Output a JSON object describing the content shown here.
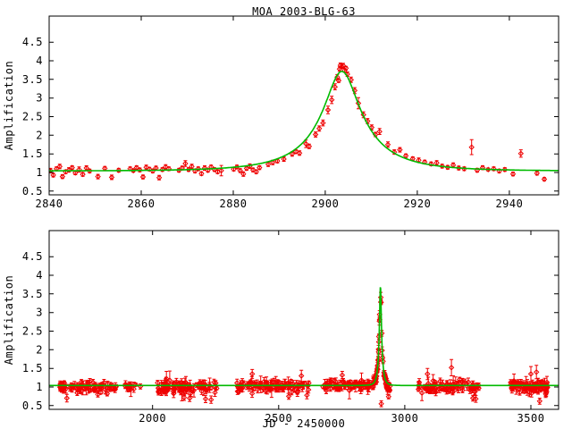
{
  "figure": {
    "title": "MOA 2003-BLG-63",
    "background": "#ffffff",
    "colors": {
      "points": "#ee0000",
      "curve": "#00bb00",
      "axis": "#000000"
    }
  },
  "chart_data": [
    {
      "id": "top-panel",
      "type": "scatter",
      "title": "MOA 2003-BLG-63",
      "xlabel": "",
      "ylabel": "Amplification",
      "xlim": [
        2840,
        2950.7
      ],
      "ylim": [
        0.4,
        5.2
      ],
      "xticks": [
        2840,
        2860,
        2880,
        2900,
        2920,
        2940
      ],
      "yticks": [
        0.5,
        1,
        1.5,
        2,
        2.5,
        3,
        3.5,
        4,
        4.5
      ],
      "grid": false,
      "legend": null,
      "model": {
        "type": "paczynski-microlensing",
        "t0": 2903.6,
        "tE": 14.3,
        "u0": 0.28,
        "baseline_offset": 0.04,
        "peak_amplification": 3.75
      },
      "points": [
        [
          2840.3,
          1.05,
          0.06
        ],
        [
          2840.9,
          0.93,
          0.05
        ],
        [
          2841.6,
          1.1,
          0.05
        ],
        [
          2842.3,
          1.16,
          0.06
        ],
        [
          2842.9,
          0.89,
          0.05
        ],
        [
          2843.6,
          1.02,
          0.05
        ],
        [
          2844.3,
          1.07,
          0.06
        ],
        [
          2845.0,
          1.13,
          0.05
        ],
        [
          2845.7,
          0.99,
          0.05
        ],
        [
          2846.5,
          1.08,
          0.07
        ],
        [
          2847.3,
          0.95,
          0.05
        ],
        [
          2848.1,
          1.12,
          0.06
        ],
        [
          2848.8,
          1.04,
          0.05
        ],
        [
          2850.6,
          0.89,
          0.06
        ],
        [
          2852.1,
          1.11,
          0.05
        ],
        [
          2853.6,
          0.87,
          0.06
        ],
        [
          2855.1,
          1.06,
          0.05
        ],
        [
          2857.6,
          1.1,
          0.05
        ],
        [
          2858.3,
          1.05,
          0.04
        ],
        [
          2859.0,
          1.13,
          0.05
        ],
        [
          2859.7,
          1.07,
          0.05
        ],
        [
          2860.4,
          0.88,
          0.05
        ],
        [
          2861.1,
          1.14,
          0.06
        ],
        [
          2861.8,
          1.09,
          0.05
        ],
        [
          2862.5,
          1.04,
          0.05
        ],
        [
          2863.2,
          1.12,
          0.05
        ],
        [
          2863.9,
          0.86,
          0.06
        ],
        [
          2864.6,
          1.08,
          0.05
        ],
        [
          2865.3,
          1.15,
          0.06
        ],
        [
          2866.0,
          1.1,
          0.05
        ],
        [
          2868.2,
          1.06,
          0.05
        ],
        [
          2868.9,
          1.12,
          0.05
        ],
        [
          2869.6,
          1.24,
          0.08
        ],
        [
          2870.3,
          1.08,
          0.05
        ],
        [
          2871.0,
          1.16,
          0.06
        ],
        [
          2871.7,
          1.04,
          0.05
        ],
        [
          2872.4,
          1.1,
          0.05
        ],
        [
          2873.1,
          0.97,
          0.05
        ],
        [
          2873.8,
          1.12,
          0.06
        ],
        [
          2874.5,
          1.06,
          0.05
        ],
        [
          2875.2,
          1.15,
          0.05
        ],
        [
          2875.9,
          1.08,
          0.05
        ],
        [
          2876.6,
          1.02,
          0.05
        ],
        [
          2877.4,
          1.05,
          0.14
        ],
        [
          2880.1,
          1.09,
          0.05
        ],
        [
          2880.8,
          1.15,
          0.05
        ],
        [
          2881.5,
          1.05,
          0.05
        ],
        [
          2882.2,
          0.96,
          0.06
        ],
        [
          2882.9,
          1.11,
          0.05
        ],
        [
          2883.6,
          1.17,
          0.06
        ],
        [
          2884.3,
          1.07,
          0.05
        ],
        [
          2885.0,
          1.02,
          0.05
        ],
        [
          2885.7,
          1.13,
          0.05
        ],
        [
          2887.6,
          1.22,
          0.06
        ],
        [
          2888.6,
          1.27,
          0.06
        ],
        [
          2889.6,
          1.31,
          0.05
        ],
        [
          2891.0,
          1.36,
          0.06
        ],
        [
          2892.8,
          1.5,
          0.06
        ],
        [
          2893.6,
          1.56,
          0.05
        ],
        [
          2894.4,
          1.52,
          0.06
        ],
        [
          2895.8,
          1.77,
          0.1
        ],
        [
          2896.5,
          1.7,
          0.06
        ],
        [
          2897.9,
          2.02,
          0.07
        ],
        [
          2898.7,
          2.18,
          0.07
        ],
        [
          2899.5,
          2.33,
          0.08
        ],
        [
          2900.6,
          2.68,
          0.1
        ],
        [
          2901.4,
          2.95,
          0.1
        ],
        [
          2902.1,
          3.3,
          0.08
        ],
        [
          2902.6,
          3.56,
          0.07
        ],
        [
          2902.9,
          3.47,
          0.05
        ],
        [
          2903.1,
          3.78,
          0.06
        ],
        [
          2903.3,
          3.88,
          0.06
        ],
        [
          2903.6,
          3.84,
          0.05
        ],
        [
          2903.9,
          3.87,
          0.06
        ],
        [
          2904.2,
          3.74,
          0.05
        ],
        [
          2904.5,
          3.8,
          0.05
        ],
        [
          2904.8,
          3.64,
          0.06
        ],
        [
          2905.6,
          3.49,
          0.07
        ],
        [
          2906.4,
          3.2,
          0.08
        ],
        [
          2907.2,
          2.86,
          0.15
        ],
        [
          2908.3,
          2.55,
          0.08
        ],
        [
          2909.2,
          2.38,
          0.07
        ],
        [
          2910.1,
          2.21,
          0.07
        ],
        [
          2910.9,
          2.02,
          0.06
        ],
        [
          2911.8,
          2.1,
          0.08
        ],
        [
          2913.6,
          1.75,
          0.07
        ],
        [
          2915.0,
          1.55,
          0.06
        ],
        [
          2916.2,
          1.61,
          0.06
        ],
        [
          2917.5,
          1.45,
          0.05
        ],
        [
          2919.0,
          1.37,
          0.05
        ],
        [
          2920.3,
          1.33,
          0.06
        ],
        [
          2921.6,
          1.28,
          0.05
        ],
        [
          2923.0,
          1.23,
          0.05
        ],
        [
          2924.2,
          1.26,
          0.06
        ],
        [
          2925.4,
          1.17,
          0.05
        ],
        [
          2926.6,
          1.14,
          0.05
        ],
        [
          2927.8,
          1.2,
          0.06
        ],
        [
          2929.0,
          1.12,
          0.05
        ],
        [
          2930.2,
          1.1,
          0.05
        ],
        [
          2931.8,
          1.68,
          0.2
        ],
        [
          2933.0,
          1.06,
          0.05
        ],
        [
          2934.2,
          1.13,
          0.05
        ],
        [
          2935.4,
          1.08,
          0.04
        ],
        [
          2936.6,
          1.1,
          0.05
        ],
        [
          2937.8,
          1.04,
          0.05
        ],
        [
          2939.0,
          1.08,
          0.05
        ],
        [
          2940.8,
          0.96,
          0.05
        ],
        [
          2942.5,
          1.51,
          0.1
        ],
        [
          2946.0,
          0.98,
          0.05
        ],
        [
          2947.6,
          0.82,
          0.04
        ]
      ]
    },
    {
      "id": "bottom-panel",
      "type": "scatter",
      "title": "",
      "xlabel": "JD - 2450000",
      "ylabel": "Amplification",
      "xlim": [
        1590,
        3610
      ],
      "ylim": [
        0.4,
        5.2
      ],
      "xticks": [
        2000,
        2500,
        3000,
        3500
      ],
      "yticks": [
        0.5,
        1,
        1.5,
        2,
        2.5,
        3,
        3.5,
        4,
        4.5
      ],
      "grid": false,
      "legend": null,
      "model": {
        "type": "paczynski-microlensing",
        "t0": 2903.6,
        "tE": 14.3,
        "u0": 0.28,
        "baseline_offset": 0.04,
        "peak_amplification": 3.75
      },
      "clusters": [
        {
          "t_start": 1618,
          "t_end": 1857,
          "n": 80,
          "mean": 1.01,
          "sd": 0.07,
          "seed": 11
        },
        {
          "t_start": 1890,
          "t_end": 1952,
          "n": 14,
          "mean": 1.02,
          "sd": 0.05,
          "seed": 12
        },
        {
          "t_start": 2018,
          "t_end": 2255,
          "n": 85,
          "mean": 1.0,
          "sd": 0.08,
          "seed": 13
        },
        {
          "t_start": 2335,
          "t_end": 2620,
          "n": 90,
          "mean": 1.02,
          "sd": 0.08,
          "seed": 14
        },
        {
          "t_start": 2672,
          "t_end": 2866,
          "n": 70,
          "mean": 1.03,
          "sd": 0.06,
          "seed": 15,
          "follow_model": true
        },
        {
          "t_start": 2866,
          "t_end": 2928,
          "n": 55,
          "sd": 0.05,
          "seed": 16,
          "follow_model": true
        },
        {
          "t_start": 2929,
          "t_end": 2946,
          "n": 10,
          "mean": 0.98,
          "sd": 0.06,
          "seed": 17
        },
        {
          "t_start": 3052,
          "t_end": 3300,
          "n": 85,
          "mean": 1.01,
          "sd": 0.08,
          "seed": 18
        },
        {
          "t_start": 3420,
          "t_end": 3570,
          "n": 75,
          "mean": 1.0,
          "sd": 0.09,
          "seed": 19
        }
      ],
      "outliers": [
        [
          1660,
          0.7,
          0.1
        ],
        [
          1783,
          0.8,
          0.07
        ],
        [
          1820,
          0.82,
          0.06
        ],
        [
          2055,
          1.22,
          0.2
        ],
        [
          2068,
          1.18,
          0.25
        ],
        [
          2125,
          0.72,
          0.08
        ],
        [
          2147,
          0.7,
          0.09
        ],
        [
          2210,
          0.68,
          0.1
        ],
        [
          2232,
          0.66,
          0.1
        ],
        [
          2395,
          1.35,
          0.12
        ],
        [
          2540,
          0.75,
          0.08
        ],
        [
          2590,
          1.3,
          0.15
        ],
        [
          2612,
          0.78,
          0.1
        ],
        [
          2752,
          1.32,
          0.1
        ],
        [
          2907,
          0.55,
          0.08
        ],
        [
          2936,
          0.74,
          0.06
        ],
        [
          3090,
          1.35,
          0.15
        ],
        [
          3185,
          1.52,
          0.22
        ],
        [
          3270,
          0.7,
          0.08
        ],
        [
          3282,
          0.68,
          0.09
        ],
        [
          3500,
          1.35,
          0.2
        ],
        [
          3522,
          1.4,
          0.18
        ],
        [
          3535,
          0.62,
          0.08
        ]
      ]
    }
  ]
}
